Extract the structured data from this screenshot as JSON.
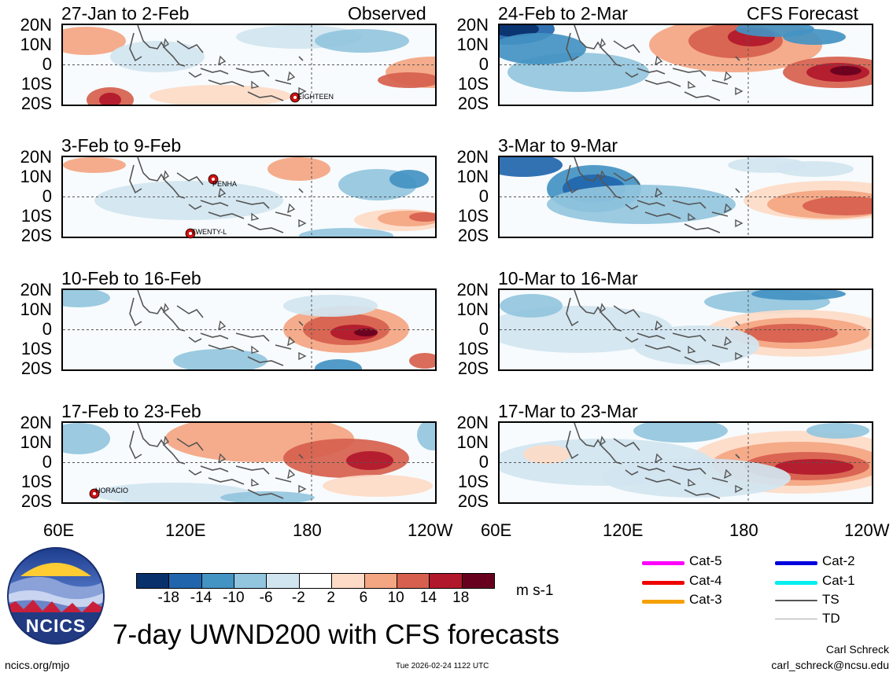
{
  "headers": {
    "left": "Observed",
    "right": "CFS Forecast"
  },
  "panels": [
    {
      "period": "27-Jan to 2-Feb",
      "storms": [
        "EIGHTEEN"
      ]
    },
    {
      "period": "3-Feb to 9-Feb",
      "storms": [
        "PENHA",
        "TWENTY-L"
      ]
    },
    {
      "period": "10-Feb to 16-Feb",
      "storms": []
    },
    {
      "period": "17-Feb to 23-Feb",
      "storms": [
        "HORACIO"
      ]
    },
    {
      "period": "24-Feb to 2-Mar",
      "storms": []
    },
    {
      "period": "3-Mar to 9-Mar",
      "storms": []
    },
    {
      "period": "10-Mar to 16-Mar",
      "storms": []
    },
    {
      "period": "17-Mar to 23-Mar",
      "storms": []
    }
  ],
  "lat_labels": [
    "20N",
    "10N",
    "0",
    "10S",
    "20S"
  ],
  "lon_labels": [
    "60E",
    "120E",
    "180",
    "120W"
  ],
  "colorbar": {
    "colors": [
      "#08306b",
      "#2166ac",
      "#4393c3",
      "#92c5de",
      "#d1e5f0",
      "#ffffff",
      "#fddbc7",
      "#f4a582",
      "#d6604d",
      "#b2182b",
      "#67001f"
    ],
    "labels": [
      "-18",
      "-14",
      "-10",
      "-6",
      "-2",
      "2",
      "6",
      "10",
      "14",
      "18"
    ],
    "units": "m s-1"
  },
  "legend": [
    {
      "label": "Cat-5",
      "color": "#ff00ff"
    },
    {
      "label": "Cat-4",
      "color": "#ee0000"
    },
    {
      "label": "Cat-3",
      "color": "#f5a000"
    },
    {
      "label": "Cat-2",
      "color": "#0000dd"
    },
    {
      "label": "Cat-1",
      "color": "#00eeee"
    },
    {
      "label": "TS",
      "color": "#555555"
    },
    {
      "label": "TD",
      "color": "#aaaaaa"
    }
  ],
  "logo_text": "NCICS",
  "main_title": "7-day UWND200 with CFS forecasts",
  "footer": {
    "left": "ncics.org/mjo",
    "center": "Tue 2026-02-24 1122 UTC",
    "author": "Carl Schreck",
    "email": "carl_schreck@ncsu.edu"
  }
}
